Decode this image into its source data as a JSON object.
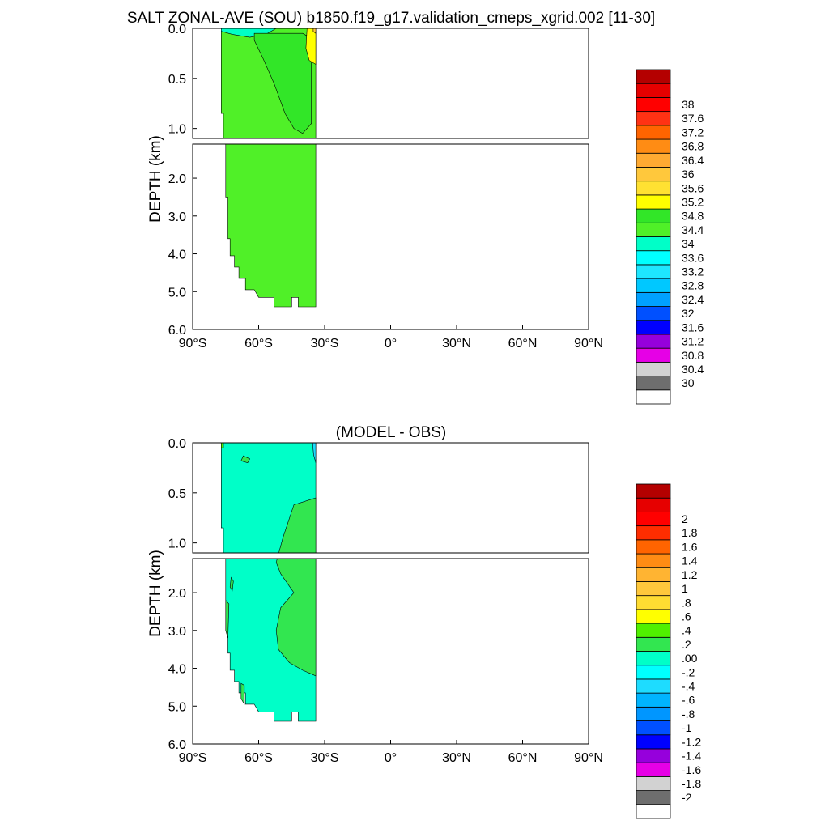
{
  "title": "SALT ZONAL-AVE (SOU) b1850.f19_g17.validation_cmeps_xgrid.002 [11-30]",
  "chart_data": [
    {
      "type": "heatmap",
      "title": "SALT ZONAL-AVE (SOU) b1850.f19_g17.validation_cmeps_xgrid.002 [11-30]",
      "ylabel": "DEPTH (km)",
      "x_ticks": [
        "90°S",
        "60°S",
        "30°S",
        "0°",
        "30°N",
        "60°N",
        "90°N"
      ],
      "y_ticks_upper": [
        "0.0",
        "0.5",
        "1.0"
      ],
      "y_ticks_lower": [
        "2.0",
        "3.0",
        "4.0",
        "5.0",
        "6.0"
      ],
      "xlim": [
        -90,
        90
      ],
      "ylim": [
        6.0,
        0.0
      ],
      "colorbar": {
        "labels": [
          "30",
          "30.4",
          "30.8",
          "31.2",
          "31.6",
          "32",
          "32.4",
          "32.8",
          "33.2",
          "33.6",
          "34",
          "34.4",
          "34.8",
          "35.2",
          "35.6",
          "36",
          "36.4",
          "36.8",
          "37.2",
          "37.6",
          "38"
        ],
        "colors": [
          "#ffffff",
          "#6e6e6e",
          "#d2d2d2",
          "#e600e6",
          "#9600dc",
          "#0000ff",
          "#0050ff",
          "#00a0ff",
          "#00c8ff",
          "#1ee6ff",
          "#00ffff",
          "#00ffc8",
          "#50f028",
          "#32e628",
          "#ffff00",
          "#ffe132",
          "#ffc83c",
          "#ffaa32",
          "#ff8c14",
          "#ff6400",
          "#ff3214",
          "#ff0000",
          "#e60000",
          "#b40000"
        ]
      },
      "regions": [
        {
          "color": "#50f028",
          "value_range": "34.4-34.8",
          "lat_range": [
            -77,
            -34
          ],
          "depth_range": [
            0.0,
            5.4
          ]
        },
        {
          "color": "#00ffc8",
          "value_range": "34-34.4",
          "lat_range": [
            -76,
            -53
          ],
          "depth_range": [
            0.0,
            0.1
          ]
        },
        {
          "color": "#ffff00",
          "value_range": "34.8-35.2",
          "lat_range": [
            -36,
            -34
          ],
          "depth_range": [
            0.0,
            0.35
          ]
        }
      ]
    },
    {
      "type": "heatmap",
      "title": "(MODEL - OBS)",
      "ylabel": "DEPTH (km)",
      "x_ticks": [
        "90°S",
        "60°S",
        "30°S",
        "0°",
        "30°N",
        "60°N",
        "90°N"
      ],
      "y_ticks_upper": [
        "0.0",
        "0.5",
        "1.0"
      ],
      "y_ticks_lower": [
        "2.0",
        "3.0",
        "4.0",
        "5.0",
        "6.0"
      ],
      "xlim": [
        -90,
        90
      ],
      "ylim": [
        6.0,
        0.0
      ],
      "colorbar": {
        "labels": [
          "-2",
          "-1.8",
          "-1.6",
          "-1.4",
          "-1.2",
          "-1",
          "-.8",
          "-.6",
          "-.4",
          "-.2",
          ".00",
          ".2",
          ".4",
          ".6",
          ".8",
          "1",
          "1.2",
          "1.4",
          "1.6",
          "1.8",
          "2"
        ],
        "colors": [
          "#ffffff",
          "#6e6e6e",
          "#d2d2d2",
          "#e600e6",
          "#9600dc",
          "#0000ff",
          "#0050ff",
          "#0096ff",
          "#00b4ff",
          "#1edcff",
          "#00ffff",
          "#00ffc8",
          "#32e650",
          "#50f000",
          "#ffff00",
          "#ffdc32",
          "#ffc83c",
          "#ffb432",
          "#ff8c14",
          "#ff6400",
          "#ff2d00",
          "#ff0000",
          "#e60000",
          "#b40000"
        ]
      },
      "regions": [
        {
          "color": "#00ffc8",
          "value_range": ".00-.2",
          "lat_range": [
            -77,
            -34
          ],
          "depth_range": [
            0.0,
            5.4
          ]
        },
        {
          "color": "#32e650",
          "value_range": ".2-.4",
          "lat_range": [
            -52,
            -34
          ],
          "depth_range": [
            0.8,
            4.2
          ]
        }
      ]
    }
  ]
}
